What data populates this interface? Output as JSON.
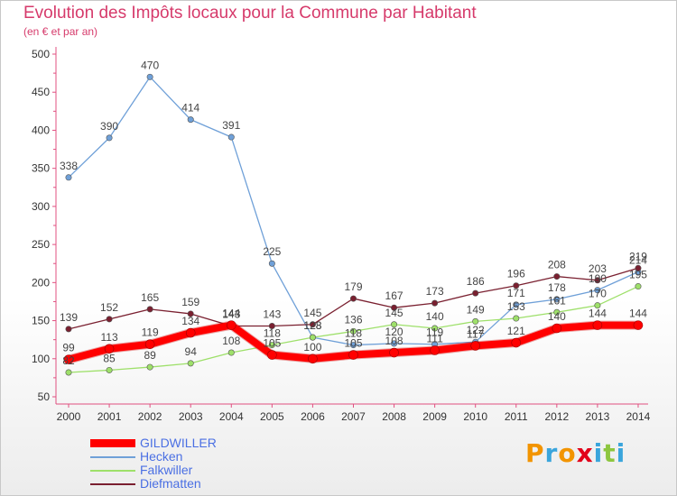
{
  "title": "Evolution des Impôts locaux pour la Commune par Habitant",
  "subtitle": "(en € et par an)",
  "brand": {
    "text": "Proxiti",
    "colors": [
      "#f29400",
      "#3aa5dc",
      "#f29400",
      "#e2001a",
      "#3aa5dc",
      "#8dc63f",
      "#3aa5dc"
    ]
  },
  "chart_data": {
    "type": "line",
    "title": "Evolution des Impôts locaux pour la Commune par Habitant",
    "subtitle": "(en € et par an)",
    "x": [
      "2000",
      "2001",
      "2002",
      "2003",
      "2004",
      "2005",
      "2006",
      "2007",
      "2008",
      "2009",
      "2010",
      "2011",
      "2012",
      "2013",
      "2014"
    ],
    "ylim": [
      50,
      500
    ],
    "yticks": [
      50,
      100,
      150,
      200,
      250,
      300,
      350,
      400,
      450,
      500
    ],
    "grid": false,
    "legend_position": "bottom-left",
    "series": [
      {
        "name": "GILDWILLER",
        "color": "#ff0000",
        "values": [
          99,
          113,
          119,
          134,
          144,
          105,
          100,
          105,
          108,
          111,
          117,
          121,
          140,
          144,
          144
        ]
      },
      {
        "name": "Hecken",
        "color": "#6fa0d8",
        "values": [
          338,
          390,
          470,
          414,
          391,
          225,
          128,
          118,
          120,
          119,
          122,
          171,
          178,
          190,
          214
        ]
      },
      {
        "name": "Falkwiller",
        "color": "#9ee06a",
        "values": [
          82,
          85,
          89,
          94,
          108,
          118,
          128,
          136,
          145,
          140,
          149,
          153,
          161,
          170,
          195
        ]
      },
      {
        "name": "Diefmatten",
        "color": "#7a2030",
        "values": [
          139,
          152,
          165,
          159,
          143,
          143,
          145,
          179,
          167,
          173,
          186,
          196,
          208,
          203,
          219
        ]
      }
    ],
    "labels": [
      [
        "99",
        "113",
        "119",
        "134",
        "144",
        "105",
        "100",
        "105",
        "108",
        "111",
        "117",
        "121",
        "140",
        "144",
        "144"
      ],
      [
        "338",
        "390",
        "470",
        "414",
        "391",
        "225",
        "128",
        "118",
        "120",
        "119",
        "122",
        "171",
        "178",
        "190",
        "214"
      ],
      [
        "82",
        "85",
        "89",
        "94",
        "108",
        "118",
        "128",
        "136",
        "145",
        "140",
        "149",
        "153",
        "161",
        "170",
        "195"
      ],
      [
        "139",
        "152",
        "165",
        "159",
        "143",
        "143",
        "145",
        "179",
        "167",
        "173",
        "186",
        "196",
        "208",
        "203",
        "219"
      ]
    ]
  }
}
